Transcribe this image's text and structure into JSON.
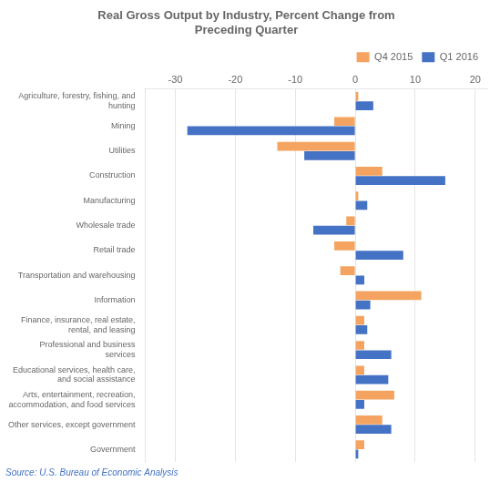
{
  "chart_data": {
    "type": "bar",
    "orientation": "horizontal",
    "title": "Real Gross Output by Industry, Percent Change from\nPreceding Quarter",
    "categories": [
      "Agriculture, forestry, fishing, and\nhunting",
      "Mining",
      "Utilities",
      "Construction",
      "Manufacturing",
      "Wholesale trade",
      "Retail trade",
      "Transportation and warehousing",
      "Information",
      "Finance, insurance, real estate,\nrental, and leasing",
      "Professional and business\nservices",
      "Educational services, health care,\nand social assistance",
      "Arts, entertainment, recreation,\naccommodation, and food services",
      "Other services, except government",
      "Government"
    ],
    "series": [
      {
        "name": "Q4 2015",
        "color": "#f4a460",
        "values": [
          0.5,
          -3.5,
          -13.0,
          4.5,
          0.5,
          -1.5,
          -3.5,
          -2.5,
          11.0,
          1.5,
          1.5,
          1.5,
          6.5,
          4.5,
          1.5
        ]
      },
      {
        "name": "Q1 2016",
        "color": "#4472c4",
        "values": [
          3.0,
          -28.0,
          -8.5,
          15.0,
          2.0,
          -7.0,
          8.0,
          1.5,
          2.5,
          2.0,
          6.0,
          5.5,
          1.5,
          6.0,
          0.5
        ]
      }
    ],
    "xlim": [
      -35,
      22
    ],
    "xticks": [
      -30,
      -20,
      -10,
      0,
      10,
      20
    ],
    "grid": true,
    "legend": "top",
    "annotations": [
      {
        "text": "Source: U.S. Bureau of Economic Analysis",
        "color": "#4472c4"
      }
    ]
  }
}
